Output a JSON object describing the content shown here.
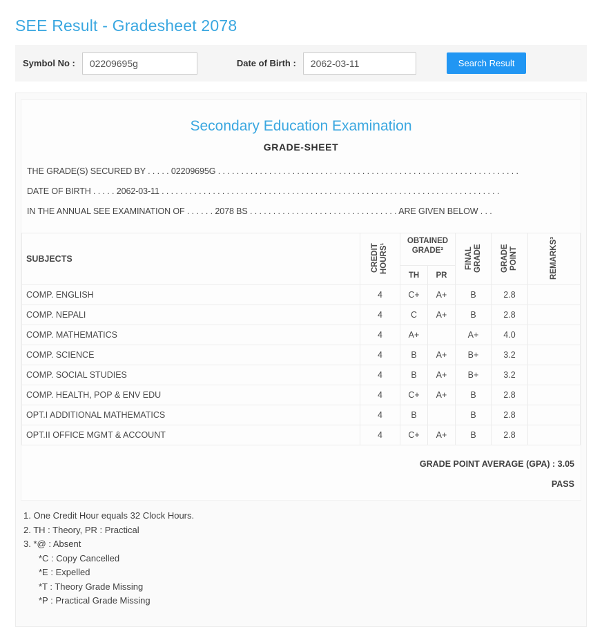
{
  "header": {
    "title": "SEE Result - Gradesheet 2078"
  },
  "colors": {
    "accent_blue": "#3aa7e0",
    "button_blue": "#2196f3"
  },
  "search": {
    "symbol_label": "Symbol No :",
    "symbol_value": "02209695g",
    "dob_label": "Date of Birth :",
    "dob_value": "2062-03-11",
    "button_label": "Search Result"
  },
  "sheet": {
    "title": "Secondary Education Examination",
    "subtitle": "GRADE-SHEET",
    "intro_lines": [
      "THE GRADE(S) SECURED BY . . . . . 02209695G . . . . . . . . . . . . . . . . . . . . . . . . . . . . . . . . . . . . . . . . . . . . . . . . . . . . . . . . . . . . . . . . .",
      "DATE OF BIRTH . . . . . 2062-03-11 . . . . . . . . . . . . . . . . . . . . . . . . . . . . . . . . . . . . . . . . . . . . . . . . . . . . . . . . . . . . . . . . . . . . . . . . .",
      "IN THE ANNUAL SEE EXAMINATION OF . . . . . . 2078 BS . . . . . . . . . . . . . . . . . . . . . . . . . . . . . . . . ARE GIVEN BELOW . . ."
    ],
    "table": {
      "headers": {
        "subjects": "SUBJECTS",
        "credit_hours": "CREDIT HOURS¹",
        "obtained_grade": "OBTAINED GRADE²",
        "th": "TH",
        "pr": "PR",
        "final_grade": "FINAL GRADE",
        "grade_point": "GRADE POINT",
        "remarks": "REMARKS³"
      },
      "rows": [
        {
          "subject": "COMP. ENGLISH",
          "credit": "4",
          "th": "C+",
          "pr": "A+",
          "final": "B",
          "point": "2.8",
          "remarks": ""
        },
        {
          "subject": "COMP. NEPALI",
          "credit": "4",
          "th": "C",
          "pr": "A+",
          "final": "B",
          "point": "2.8",
          "remarks": ""
        },
        {
          "subject": "COMP. MATHEMATICS",
          "credit": "4",
          "th": "A+",
          "pr": "",
          "final": "A+",
          "point": "4.0",
          "remarks": ""
        },
        {
          "subject": "COMP. SCIENCE",
          "credit": "4",
          "th": "B",
          "pr": "A+",
          "final": "B+",
          "point": "3.2",
          "remarks": ""
        },
        {
          "subject": "COMP. SOCIAL STUDIES",
          "credit": "4",
          "th": "B",
          "pr": "A+",
          "final": "B+",
          "point": "3.2",
          "remarks": ""
        },
        {
          "subject": "COMP. HEALTH, POP & ENV EDU",
          "credit": "4",
          "th": "C+",
          "pr": "A+",
          "final": "B",
          "point": "2.8",
          "remarks": ""
        },
        {
          "subject": "OPT.I ADDITIONAL MATHEMATICS",
          "credit": "4",
          "th": "B",
          "pr": "",
          "final": "B",
          "point": "2.8",
          "remarks": ""
        },
        {
          "subject": "OPT.II OFFICE MGMT & ACCOUNT",
          "credit": "4",
          "th": "C+",
          "pr": "A+",
          "final": "B",
          "point": "2.8",
          "remarks": ""
        }
      ]
    },
    "gpa_line": "GRADE POINT AVERAGE (GPA) : 3.05",
    "result": "PASS"
  },
  "notes": [
    {
      "text": "1. One Credit Hour equals 32 Clock Hours.",
      "indent": false
    },
    {
      "text": "2. TH : Theory, PR : Practical",
      "indent": false
    },
    {
      "text": "3. *@ : Absent",
      "indent": false
    },
    {
      "text": "*C : Copy Cancelled",
      "indent": true
    },
    {
      "text": "*E : Expelled",
      "indent": true
    },
    {
      "text": "*T : Theory Grade Missing",
      "indent": true
    },
    {
      "text": "*P : Practical Grade Missing",
      "indent": true
    }
  ]
}
